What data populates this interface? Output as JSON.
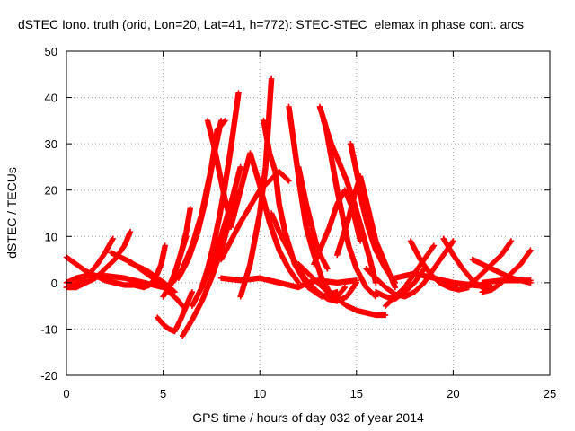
{
  "chart_data": {
    "type": "scatter",
    "title": "dSTEC Iono. truth (orid, Lon=20, Lat=41, h=772): STEC-STEC_elemax in phase cont. arcs",
    "xlabel": "GPS time / hours of day 032 of year 2014",
    "ylabel": "dSTEC  / TECUs",
    "xlim": [
      0,
      25
    ],
    "ylim": [
      -20,
      50
    ],
    "xticks": [
      0,
      5,
      10,
      15,
      20,
      25
    ],
    "yticks": [
      -20,
      -10,
      0,
      10,
      20,
      30,
      40,
      50
    ],
    "grid": true,
    "marker": "plus",
    "marker_color": "#ff0000",
    "series": [
      {
        "x": [
          0.0,
          0.4,
          0.8,
          1.2,
          1.6,
          2.0,
          2.4
        ],
        "y": [
          -1,
          -0.5,
          0.5,
          2,
          4,
          6.5,
          9.5
        ]
      },
      {
        "x": [
          0.0,
          0.5,
          1.0,
          1.5,
          2.0,
          2.5,
          3.0,
          3.3
        ],
        "y": [
          -1,
          -1,
          0,
          1,
          3,
          5,
          8,
          11
        ]
      },
      {
        "x": [
          0.0,
          0.5,
          1.0,
          1.5,
          2.0,
          2.5,
          3.0,
          3.5,
          4.0
        ],
        "y": [
          5.5,
          4,
          2.5,
          1.5,
          0.5,
          0,
          -0.5,
          -0.5,
          -1
        ]
      },
      {
        "x": [
          0.0,
          0.5,
          1.0,
          2.0,
          3.0,
          4.0,
          5.0,
          5.5
        ],
        "y": [
          0,
          1,
          1.5,
          1.5,
          1,
          0,
          -1,
          -2
        ]
      },
      {
        "x": [
          2.3,
          2.8,
          3.3,
          3.8,
          4.3,
          4.8,
          5.3,
          5.7,
          6.0
        ],
        "y": [
          6.5,
          5.5,
          4.5,
          3,
          1.5,
          0,
          -2,
          -3.5,
          -5
        ]
      },
      {
        "x": [
          3.2,
          3.7,
          4.2,
          4.7,
          5.2,
          5.6
        ],
        "y": [
          4.5,
          3.5,
          2.5,
          1,
          -0.5,
          -2
        ]
      },
      {
        "x": [
          4.0,
          4.3,
          4.6,
          4.9,
          5.1
        ],
        "y": [
          -1,
          -0.5,
          1,
          4,
          8
        ]
      },
      {
        "x": [
          4.7,
          5.0,
          5.3,
          5.6,
          5.9,
          6.2,
          6.5
        ],
        "y": [
          -7.5,
          -9,
          -10,
          -10.5,
          -8,
          -5,
          -2
        ]
      },
      {
        "x": [
          5.0,
          5.3,
          5.6,
          5.9,
          6.2
        ],
        "y": [
          -3,
          -1,
          2,
          6,
          10
        ]
      },
      {
        "x": [
          5.3,
          5.6,
          5.9,
          6.2,
          6.4
        ],
        "y": [
          -1,
          2,
          6,
          11,
          16
        ]
      },
      {
        "x": [
          5.5,
          6.0,
          6.5,
          7.0,
          7.5,
          7.8
        ],
        "y": [
          0,
          3,
          8,
          15,
          25,
          33
        ]
      },
      {
        "x": [
          5.8,
          6.3,
          6.8,
          7.2,
          7.6,
          8.0
        ],
        "y": [
          1,
          5,
          11,
          18,
          27,
          35
        ]
      },
      {
        "x": [
          6.0,
          6.5,
          7.0,
          7.5,
          8.0,
          8.4,
          8.8
        ],
        "y": [
          -11.5,
          -8,
          -4,
          1,
          7,
          13,
          20
        ]
      },
      {
        "x": [
          6.5,
          7.0,
          7.5,
          8.0,
          8.5,
          9.0
        ],
        "y": [
          -5,
          -1,
          4,
          10,
          17,
          25
        ]
      },
      {
        "x": [
          7.0,
          7.3,
          7.6,
          7.9,
          8.2,
          8.5,
          8.9
        ],
        "y": [
          -1,
          3,
          8,
          14,
          21,
          29,
          41
        ]
      },
      {
        "x": [
          7.3,
          7.6,
          7.9,
          8.2,
          8.5
        ],
        "y": [
          35,
          30,
          24,
          18,
          13
        ]
      },
      {
        "x": [
          7.8,
          8.0,
          8.2
        ],
        "y": [
          33,
          34,
          35
        ]
      },
      {
        "x": [
          8.0,
          8.5,
          9.0,
          9.5,
          10.0,
          10.5,
          11.0,
          11.5
        ],
        "y": [
          5,
          9,
          13,
          16.5,
          20,
          22,
          24,
          22
        ]
      },
      {
        "x": [
          8.5,
          9.0,
          9.5,
          10.0,
          10.5,
          11.0,
          11.5,
          12.0
        ],
        "y": [
          12,
          20,
          28,
          21,
          13,
          7,
          3,
          0
        ]
      },
      {
        "x": [
          8.0,
          9.0,
          10.0,
          11.0,
          11.5,
          12.0,
          12.5,
          13.0,
          14.0,
          15.0
        ],
        "y": [
          1,
          0.5,
          1,
          0,
          -0.5,
          -1,
          0,
          0.5,
          0,
          0.5
        ]
      },
      {
        "x": [
          9.0,
          9.5,
          10.0,
          10.3,
          10.6
        ],
        "y": [
          -3,
          4,
          15,
          25,
          44
        ]
      },
      {
        "x": [
          10.2,
          10.5,
          10.8,
          11.0,
          11.3,
          11.8,
          12.5,
          13.2,
          14.0
        ],
        "y": [
          35,
          28,
          24,
          17,
          11,
          4,
          -1,
          -3,
          -2
        ]
      },
      {
        "x": [
          10.6,
          11.0,
          11.5,
          12.0,
          12.5,
          13.0,
          13.5,
          14.0,
          14.5,
          15.0
        ],
        "y": [
          15,
          11,
          7,
          3,
          0,
          -2,
          -3.5,
          -4,
          -3,
          0
        ]
      },
      {
        "x": [
          11.5,
          11.8,
          12.1,
          12.4,
          12.8,
          13.2,
          13.6,
          14.0,
          14.4
        ],
        "y": [
          38,
          29,
          20,
          12,
          6,
          1,
          -2,
          -3,
          -1
        ]
      },
      {
        "x": [
          12.0,
          12.2,
          12.4,
          12.7,
          13.0,
          13.5
        ],
        "y": [
          25,
          21,
          17,
          12,
          7,
          3
        ]
      },
      {
        "x": [
          12.0,
          12.5,
          13.0,
          13.5,
          14.0,
          14.5,
          15.0,
          15.5,
          16.0,
          16.5
        ],
        "y": [
          4,
          2,
          0,
          -2,
          -3.5,
          -5,
          -6,
          -6.5,
          -7,
          -7
        ]
      },
      {
        "x": [
          13.1,
          13.4,
          13.7,
          14.0,
          14.3,
          14.6,
          15.0,
          15.5,
          16.0
        ],
        "y": [
          38,
          34,
          27,
          20,
          14,
          8,
          3,
          -1,
          -3
        ]
      },
      {
        "x": [
          12.8,
          13.2,
          13.6,
          14.0,
          14.4,
          14.8,
          15.2
        ],
        "y": [
          4,
          8,
          12,
          17,
          20,
          16,
          9
        ]
      },
      {
        "x": [
          13.3,
          13.7,
          14.1,
          14.5,
          14.9,
          15.3,
          15.7,
          16.0
        ],
        "y": [
          35,
          30,
          26,
          22,
          17,
          11,
          5,
          0
        ]
      },
      {
        "x": [
          14.0,
          14.3,
          14.6,
          14.9,
          15.2,
          15.6,
          16.0,
          16.5,
          17.0
        ],
        "y": [
          6,
          10,
          14,
          19,
          23,
          16,
          9,
          4,
          -1
        ]
      },
      {
        "x": [
          14.7,
          14.9,
          15.1,
          15.3,
          15.6,
          16.0,
          16.5,
          17.0
        ],
        "y": [
          30,
          26,
          22,
          17,
          12,
          7,
          3,
          0
        ]
      },
      {
        "x": [
          15.5,
          16.0,
          16.5,
          17.0,
          17.5,
          18.0,
          18.5,
          19.0,
          19.5,
          20.0
        ],
        "y": [
          3,
          1,
          -1,
          -2.5,
          -3,
          -2,
          0,
          3,
          6,
          9
        ]
      },
      {
        "x": [
          16.0,
          16.5,
          17.0,
          17.5,
          18.0,
          18.5
        ],
        "y": [
          -2,
          -3,
          -3.5,
          -2,
          0,
          3
        ]
      },
      {
        "x": [
          16.5,
          17.0,
          17.5,
          18.0,
          18.5,
          19.0
        ],
        "y": [
          -5,
          -3,
          -1,
          2,
          5,
          8
        ]
      },
      {
        "x": [
          17.8,
          18.3,
          18.8,
          19.3,
          19.8,
          20.3,
          20.8
        ],
        "y": [
          9,
          5,
          2,
          0,
          -1,
          -1.5,
          -1
        ]
      },
      {
        "x": [
          17.0,
          18.0,
          19.0,
          20.0,
          21.0,
          22.0
        ],
        "y": [
          1,
          2,
          1,
          0,
          -0.5,
          -1
        ]
      },
      {
        "x": [
          19.5,
          20.0,
          20.5,
          21.0,
          21.5,
          22.0
        ],
        "y": [
          9.5,
          6,
          3,
          0.5,
          -1,
          -1.5
        ]
      },
      {
        "x": [
          20.5,
          21.0,
          21.5,
          22.0,
          22.5,
          23.0
        ],
        "y": [
          -1,
          0,
          2,
          4,
          6,
          9
        ]
      },
      {
        "x": [
          21.5,
          22.0,
          22.5,
          23.0,
          23.5,
          24.0
        ],
        "y": [
          -2,
          -1.5,
          0,
          2,
          4,
          7
        ]
      },
      {
        "x": [
          21.0,
          21.5,
          22.0,
          22.5,
          23.0,
          23.5,
          24.0
        ],
        "y": [
          5,
          4,
          3,
          2,
          1,
          0.5,
          0
        ]
      },
      {
        "x": [
          21.5,
          22.5,
          23.5,
          24.0
        ],
        "y": [
          0,
          0.5,
          0.5,
          0.5
        ]
      }
    ]
  }
}
